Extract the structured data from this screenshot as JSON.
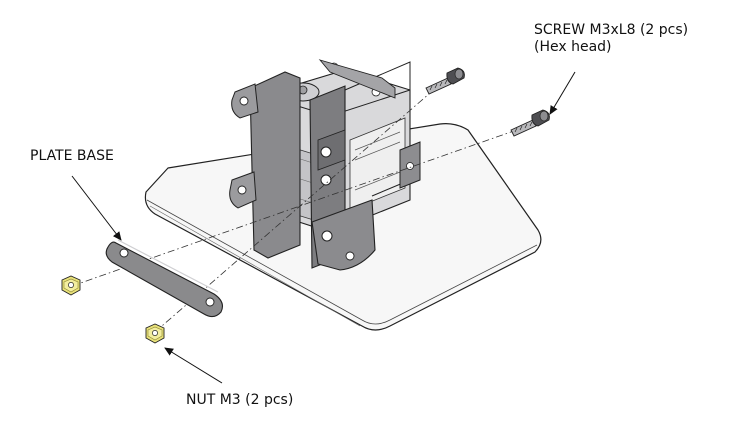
{
  "callouts": {
    "screw": {
      "line1": "SCREW M3xL8 (2 pcs)",
      "line2": "(Hex head)"
    },
    "plate": {
      "label": "PLATE BASE"
    },
    "nut": {
      "label": "NUT M3  (2 pcs)"
    }
  },
  "colors": {
    "line": "#222222",
    "plate_fill": "#f7f7f7",
    "metal_dark": "#7d7d80",
    "metal_light": "#b9b9bc",
    "bracket_plate_fill": "#8a8a8c",
    "nut_fill": "#e9e27a"
  }
}
